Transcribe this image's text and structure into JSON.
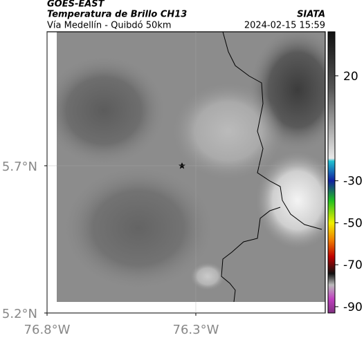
{
  "header": {
    "title": "GOES-EAST",
    "subtitle": "Temperatura de Brillo CH13",
    "location": "Vía Medellín - Quibdó 50km",
    "source": "SIATA",
    "datetime": "2024-02-15 15:59"
  },
  "map": {
    "xlim": [
      -76.8,
      -75.865
    ],
    "ylim": [
      5.2,
      6.155
    ],
    "xticks": [
      {
        "value": -76.8,
        "label": "76.8°W"
      },
      {
        "value": -76.3,
        "label": "76.3°W"
      }
    ],
    "yticks": [
      {
        "value": 5.7,
        "label": "5.7°N"
      },
      {
        "value": 5.2,
        "label": "5.2°N"
      }
    ]
  },
  "colorbar": {
    "clim": [
      -93,
      41
    ],
    "ticks": [
      20,
      -30,
      -50,
      -70,
      -90
    ]
  }
}
